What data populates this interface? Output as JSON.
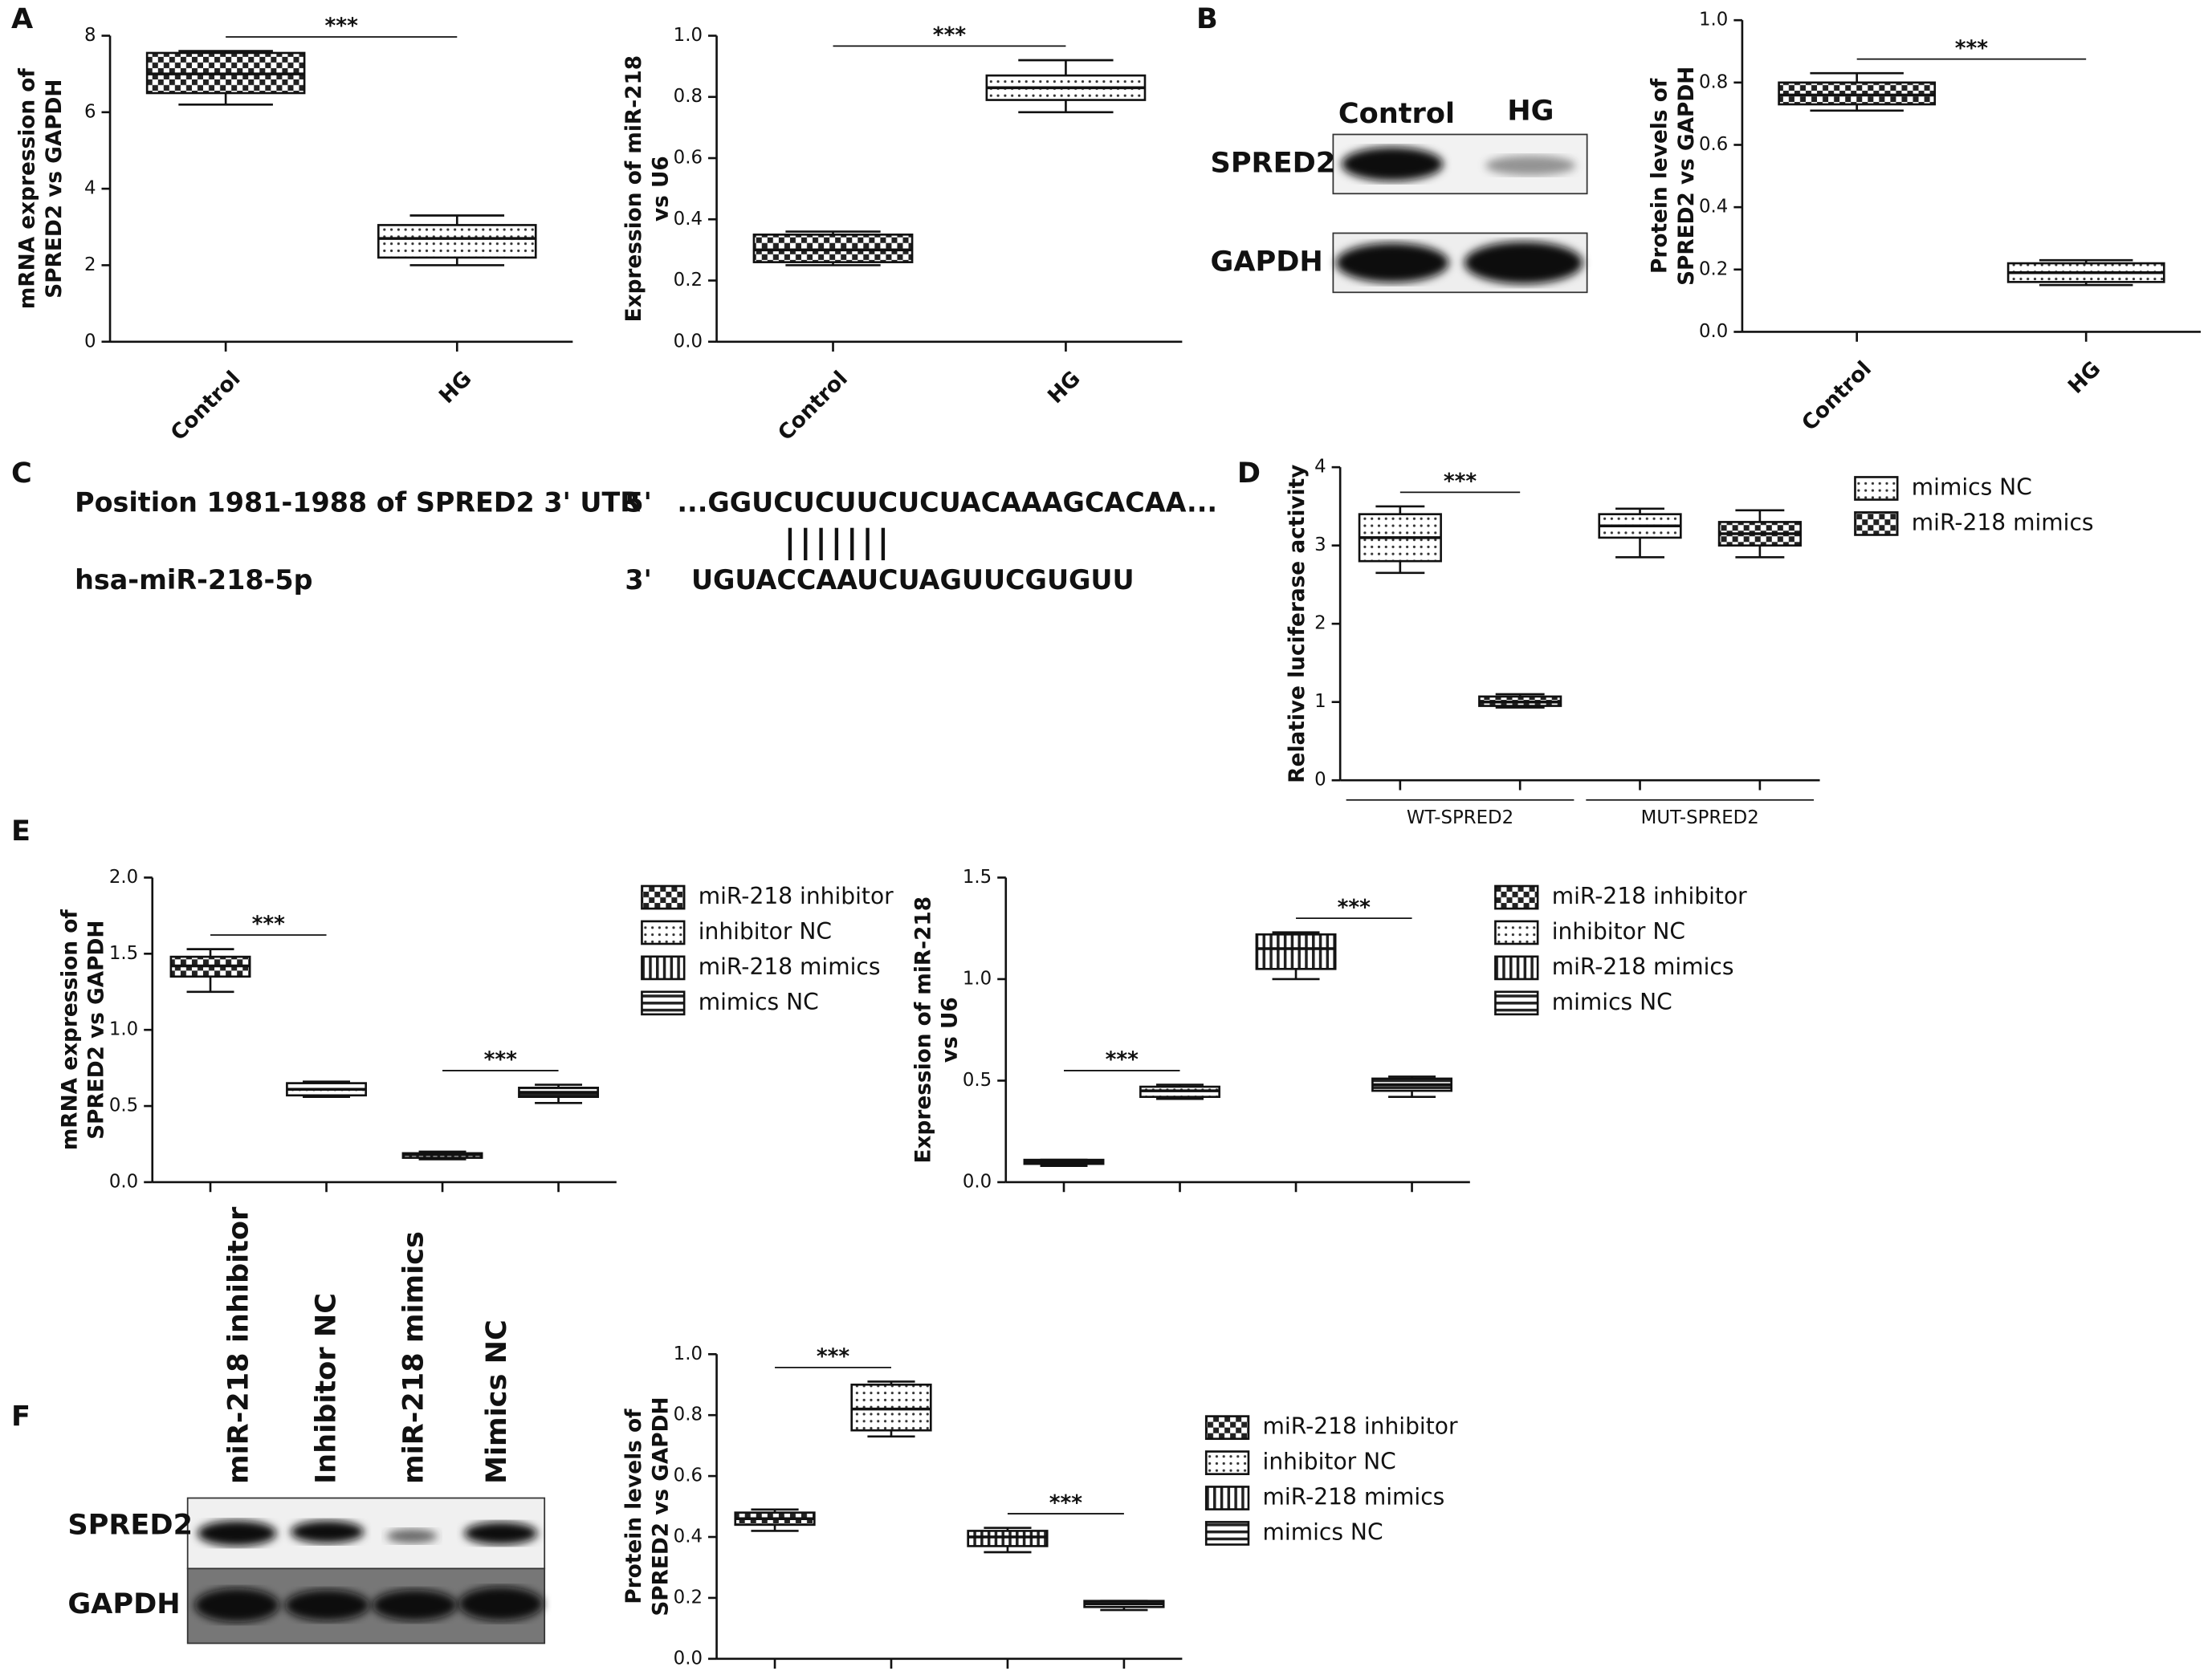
{
  "panels": [
    "A",
    "B",
    "C",
    "D",
    "E",
    "F"
  ],
  "blot_b": {
    "columns": [
      "Control",
      "HG"
    ],
    "rows": [
      "SPRED2",
      "GAPDH"
    ]
  },
  "blot_f": {
    "columns": [
      "miR-218 inhibitor",
      "Inhibitor NC",
      "miR-218 mimics",
      "Mimics NC"
    ],
    "rows": [
      "SPRED2",
      "GAPDH"
    ]
  },
  "sequence": {
    "site": "Position 1981-1988 of SPRED2 3' UTR",
    "target_end": "5'",
    "target": "...GGUCUCUUCUCUACAAAGCACAA...",
    "mirna": "hsa-miR-218-5p",
    "mirna_end": "3'",
    "mirna_seq": "UGUACCAAUCUAGUUCGUGUU"
  },
  "chart_data": [
    {
      "type": "box",
      "ylabel": [
        "mRNA expression of",
        "SPRED2 vs GAPDH"
      ],
      "ylim": [
        0,
        8
      ],
      "yticks": [
        0,
        2,
        4,
        6,
        8
      ],
      "categories": [
        "Control",
        "HG"
      ],
      "patterns": [
        "checker",
        "dots"
      ],
      "boxes": [
        {
          "min": 6.2,
          "q1": 6.5,
          "median": 7.0,
          "q3": 7.55,
          "max": 7.6
        },
        {
          "min": 2.0,
          "q1": 2.2,
          "median": 2.7,
          "q3": 3.05,
          "max": 3.3
        }
      ],
      "annotations": [
        {
          "text": "***",
          "span": [
            0,
            1
          ]
        }
      ]
    },
    {
      "type": "box",
      "ylabel": [
        "Expression of miR-218",
        "vs U6"
      ],
      "ylim": [
        0,
        1
      ],
      "yticks": [
        {
          "value": 0,
          "label": "0.0"
        },
        0.2,
        0.4,
        0.6,
        0.8,
        {
          "value": 1,
          "label": "1.0"
        }
      ],
      "categories": [
        "Control",
        "HG"
      ],
      "patterns": [
        "checker",
        "dots"
      ],
      "boxes": [
        {
          "min": 0.25,
          "q1": 0.26,
          "median": 0.3,
          "q3": 0.35,
          "max": 0.36
        },
        {
          "min": 0.75,
          "q1": 0.79,
          "median": 0.83,
          "q3": 0.87,
          "max": 0.92
        }
      ],
      "annotations": [
        {
          "text": "***",
          "span": [
            0,
            1
          ]
        }
      ]
    },
    {
      "type": "box",
      "ylabel": [
        "Protein levels of",
        "SPRED2 vs GAPDH"
      ],
      "ylim": [
        0,
        1
      ],
      "yticks": [
        {
          "value": 0,
          "label": "0.0"
        },
        0.2,
        0.4,
        0.6,
        0.8,
        {
          "value": 1,
          "label": "1.0"
        }
      ],
      "categories": [
        "Control",
        "HG"
      ],
      "patterns": [
        "checker",
        "dots"
      ],
      "boxes": [
        {
          "min": 0.71,
          "q1": 0.73,
          "median": 0.76,
          "q3": 0.8,
          "max": 0.83
        },
        {
          "min": 0.15,
          "q1": 0.16,
          "median": 0.19,
          "q3": 0.22,
          "max": 0.23
        }
      ],
      "annotations": [
        {
          "text": "***",
          "span": [
            0,
            1
          ]
        }
      ]
    },
    {
      "type": "box",
      "ylabel": [
        "Relative luciferase activity"
      ],
      "ylim": [
        0,
        4
      ],
      "yticks": [
        0,
        1,
        2,
        3,
        4
      ],
      "categories": [
        "WT-SPRED2",
        "MUT-SPRED2"
      ],
      "series": [
        {
          "name": "mimics NC",
          "pattern": "dots",
          "boxes": [
            {
              "min": 2.65,
              "q1": 2.8,
              "median": 3.1,
              "q3": 3.4,
              "max": 3.5
            },
            {
              "min": 2.85,
              "q1": 3.1,
              "median": 3.25,
              "q3": 3.4,
              "max": 3.47
            }
          ]
        },
        {
          "name": "miR-218 mimics",
          "pattern": "checker",
          "boxes": [
            {
              "min": 0.93,
              "q1": 0.95,
              "median": 1.0,
              "q3": 1.07,
              "max": 1.1
            },
            {
              "min": 2.85,
              "q1": 3.0,
              "median": 3.15,
              "q3": 3.3,
              "max": 3.45
            }
          ]
        }
      ],
      "annotations": [
        {
          "text": "***",
          "span": [
            0,
            1
          ]
        }
      ]
    },
    {
      "type": "box",
      "ylabel": [
        "mRNA expression of",
        "SPRED2 vs GAPDH"
      ],
      "ylim": [
        0,
        2
      ],
      "yticks": [
        {
          "value": 0,
          "label": "0.0"
        },
        0.5,
        {
          "value": 1,
          "label": "1.0"
        },
        1.5,
        {
          "value": 2,
          "label": "2.0"
        }
      ],
      "series": [
        {
          "name": "miR-218 inhibitor",
          "pattern": "checker",
          "boxes": [
            {
              "min": 1.25,
              "q1": 1.35,
              "median": 1.42,
              "q3": 1.48,
              "max": 1.53
            }
          ]
        },
        {
          "name": "inhibitor NC",
          "pattern": "dots",
          "boxes": [
            {
              "min": 0.56,
              "q1": 0.57,
              "median": 0.61,
              "q3": 0.65,
              "max": 0.66
            }
          ]
        },
        {
          "name": "miR-218 mimics",
          "pattern": "vstripes",
          "boxes": [
            {
              "min": 0.15,
              "q1": 0.16,
              "median": 0.18,
              "q3": 0.19,
              "max": 0.2
            }
          ]
        },
        {
          "name": "mimics NC",
          "pattern": "hstripes",
          "boxes": [
            {
              "min": 0.52,
              "q1": 0.56,
              "median": 0.59,
              "q3": 0.62,
              "max": 0.64
            }
          ]
        }
      ],
      "annotations": [
        {
          "text": "***",
          "span": [
            0,
            1
          ]
        },
        {
          "text": "***",
          "span": [
            2,
            3
          ]
        }
      ]
    },
    {
      "type": "box",
      "ylabel": [
        "Expression of miR-218",
        "vs U6"
      ],
      "ylim": [
        0,
        1.5
      ],
      "yticks": [
        {
          "value": 0,
          "label": "0.0"
        },
        0.5,
        {
          "value": 1,
          "label": "1.0"
        },
        1.5
      ],
      "series": [
        {
          "name": "miR-218 inhibitor",
          "pattern": "checker",
          "boxes": [
            {
              "min": 0.08,
              "q1": 0.09,
              "median": 0.1,
              "q3": 0.11,
              "max": 0.11
            }
          ]
        },
        {
          "name": "inhibitor NC",
          "pattern": "dots",
          "boxes": [
            {
              "min": 0.41,
              "q1": 0.42,
              "median": 0.45,
              "q3": 0.47,
              "max": 0.48
            }
          ]
        },
        {
          "name": "miR-218 mimics",
          "pattern": "vstripes",
          "boxes": [
            {
              "min": 1.0,
              "q1": 1.05,
              "median": 1.15,
              "q3": 1.22,
              "max": 1.23
            }
          ]
        },
        {
          "name": "mimics NC",
          "pattern": "hstripes",
          "boxes": [
            {
              "min": 0.42,
              "q1": 0.45,
              "median": 0.48,
              "q3": 0.51,
              "max": 0.52
            }
          ]
        }
      ],
      "annotations": [
        {
          "text": "***",
          "span": [
            0,
            1
          ]
        },
        {
          "text": "***",
          "span": [
            2,
            3
          ]
        }
      ]
    },
    {
      "type": "box",
      "ylabel": [
        "Protein levels of",
        "SPRED2 vs GAPDH"
      ],
      "ylim": [
        0,
        1
      ],
      "yticks": [
        {
          "value": 0,
          "label": "0.0"
        },
        0.2,
        0.4,
        0.6,
        0.8,
        {
          "value": 1,
          "label": "1.0"
        }
      ],
      "series": [
        {
          "name": "miR-218 inhibitor",
          "pattern": "checker",
          "boxes": [
            {
              "min": 0.42,
              "q1": 0.44,
              "median": 0.46,
              "q3": 0.48,
              "max": 0.49
            }
          ]
        },
        {
          "name": "inhibitor NC",
          "pattern": "dots",
          "boxes": [
            {
              "min": 0.73,
              "q1": 0.75,
              "median": 0.82,
              "q3": 0.9,
              "max": 0.91
            }
          ]
        },
        {
          "name": "miR-218 mimics",
          "pattern": "vstripes",
          "boxes": [
            {
              "min": 0.35,
              "q1": 0.37,
              "median": 0.4,
              "q3": 0.42,
              "max": 0.43
            }
          ]
        },
        {
          "name": "mimics NC",
          "pattern": "hstripes",
          "boxes": [
            {
              "min": 0.16,
              "q1": 0.17,
              "median": 0.18,
              "q3": 0.19,
              "max": 0.19
            }
          ]
        }
      ],
      "annotations": [
        {
          "text": "***",
          "span": [
            0,
            1
          ]
        },
        {
          "text": "***",
          "span": [
            2,
            3
          ]
        }
      ]
    }
  ]
}
